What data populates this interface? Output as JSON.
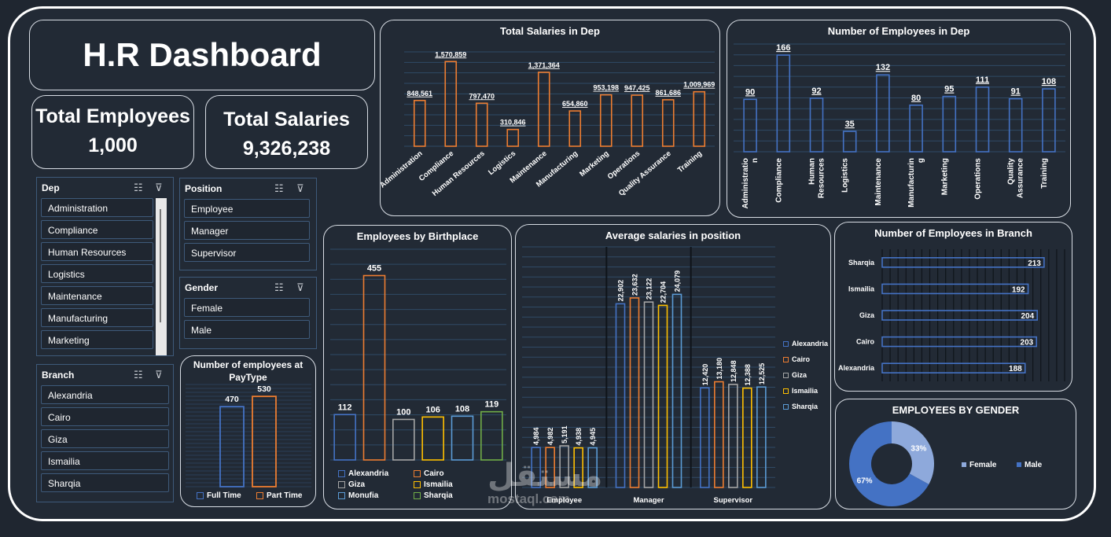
{
  "header": {
    "title": "H.R Dashboard"
  },
  "kpis": {
    "employees": {
      "label": "Total Employees",
      "value": "1,000"
    },
    "salaries": {
      "label": "Total Salaries",
      "value": "9,326,238"
    }
  },
  "slicers": {
    "dep": {
      "title": "Dep",
      "items": [
        "Administration",
        "Compliance",
        "Human Resources",
        "Logistics",
        "Maintenance",
        "Manufacturing",
        "Marketing"
      ]
    },
    "position": {
      "title": "Position",
      "items": [
        "Employee",
        "Manager",
        "Supervisor"
      ]
    },
    "gender": {
      "title": "Gender",
      "items": [
        "Female",
        "Male"
      ]
    },
    "branch": {
      "title": "Branch",
      "items": [
        "Alexandria",
        "Cairo",
        "Giza",
        "Ismailia",
        "Sharqia"
      ]
    }
  },
  "watermark": {
    "arabic": "مستقل",
    "latin": "mostaql.com"
  },
  "chart_data": [
    {
      "id": "salaries_dep",
      "type": "bar",
      "title": "Total Salaries in Dep",
      "color": "#ed7d31",
      "categories": [
        "Administration",
        "Compliance",
        "Human Resources",
        "Logistics",
        "Maintenance",
        "Manufacturing",
        "Marketing",
        "Operations",
        "Quality Assurance",
        "Training"
      ],
      "values": [
        848561,
        1570859,
        797470,
        310846,
        1371364,
        654860,
        953198,
        947425,
        861686,
        1009969
      ],
      "labels": [
        "848,561",
        "1,570,859",
        "797,470",
        "310,846",
        "1,371,364",
        "654,860",
        "953,198",
        "947,425",
        "861,686",
        "1,009,969"
      ],
      "ylim": [
        0,
        1750000
      ]
    },
    {
      "id": "employees_dep",
      "type": "bar",
      "title": "Number of Employees in Dep",
      "color": "#4472c4",
      "categories": [
        "Administratio n",
        "Compliance",
        "Human Resources",
        "Logistics",
        "Maintenance",
        "Manufacturin g",
        "Marketing",
        "Operations",
        "Quality Assurance",
        "Training"
      ],
      "values": [
        90,
        166,
        92,
        35,
        132,
        80,
        95,
        111,
        91,
        108
      ],
      "labels": [
        "90",
        "166",
        "92",
        "35",
        "132",
        "80",
        "95",
        "111",
        "91",
        "108"
      ],
      "ylim": [
        0,
        185
      ]
    },
    {
      "id": "birthplace",
      "type": "bar",
      "title": "Employees by Birthplace",
      "categories": [
        "Alexandria",
        "Cairo",
        "Giza",
        "Ismailia",
        "Monufia",
        "Sharqia"
      ],
      "values": [
        112,
        455,
        100,
        106,
        108,
        119
      ],
      "labels": [
        "112",
        "455",
        "100",
        "106",
        "108",
        "119"
      ],
      "colors": [
        "#4472c4",
        "#ed7d31",
        "#a5a5a5",
        "#ffc000",
        "#5b9bd5",
        "#70ad47"
      ],
      "ylim": [
        0,
        520
      ]
    },
    {
      "id": "avg_position",
      "type": "bar",
      "title": "Average salaries in position",
      "categories": [
        "Employee",
        "Manager",
        "Supervisor"
      ],
      "series": [
        {
          "name": "Alexandria",
          "color": "#4472c4",
          "values": [
            4984,
            22902,
            12420
          ],
          "labels": [
            "4,984",
            "22,902",
            "12,420"
          ]
        },
        {
          "name": "Cairo",
          "color": "#ed7d31",
          "values": [
            4982,
            23632,
            13180
          ],
          "labels": [
            "4,982",
            "23,632",
            "13,180"
          ]
        },
        {
          "name": "Giza",
          "color": "#a5a5a5",
          "values": [
            5191,
            23122,
            12848
          ],
          "labels": [
            "5,191",
            "23,122",
            "12,848"
          ]
        },
        {
          "name": "Ismailia",
          "color": "#ffc000",
          "values": [
            4938,
            22704,
            12388
          ],
          "labels": [
            "4,938",
            "22,704",
            "12,388"
          ]
        },
        {
          "name": "Sharqia",
          "color": "#5b9bd5",
          "values": [
            4945,
            24079,
            12525
          ],
          "labels": [
            "4,945",
            "24,079",
            "12,525"
          ]
        }
      ],
      "ylim": [
        0,
        30000
      ]
    },
    {
      "id": "branch",
      "type": "bar",
      "orientation": "horizontal",
      "title": "Number of Employees in Branch",
      "color": "#4472c4",
      "categories": [
        "Sharqia",
        "Ismailia",
        "Giza",
        "Cairo",
        "Alexandria"
      ],
      "values": [
        213,
        192,
        204,
        203,
        188
      ],
      "labels": [
        "213",
        "192",
        "204",
        "203",
        "188"
      ],
      "xlim": [
        0,
        240
      ]
    },
    {
      "id": "paytype",
      "type": "bar",
      "title": "Number of employees at PayType",
      "categories": [
        "Full Time",
        "Part Time"
      ],
      "values": [
        470,
        530
      ],
      "labels": [
        "470",
        "530"
      ],
      "colors": [
        "#4472c4",
        "#ed7d31"
      ],
      "ylim": [
        0,
        600
      ]
    },
    {
      "id": "gender",
      "type": "pie",
      "title": "EMPLOYEES BY GENDER",
      "categories": [
        "Female",
        "Male"
      ],
      "values": [
        33,
        67
      ],
      "labels": [
        "33%",
        "67%"
      ],
      "colors": [
        "#8ea9db",
        "#4472c4"
      ]
    }
  ]
}
